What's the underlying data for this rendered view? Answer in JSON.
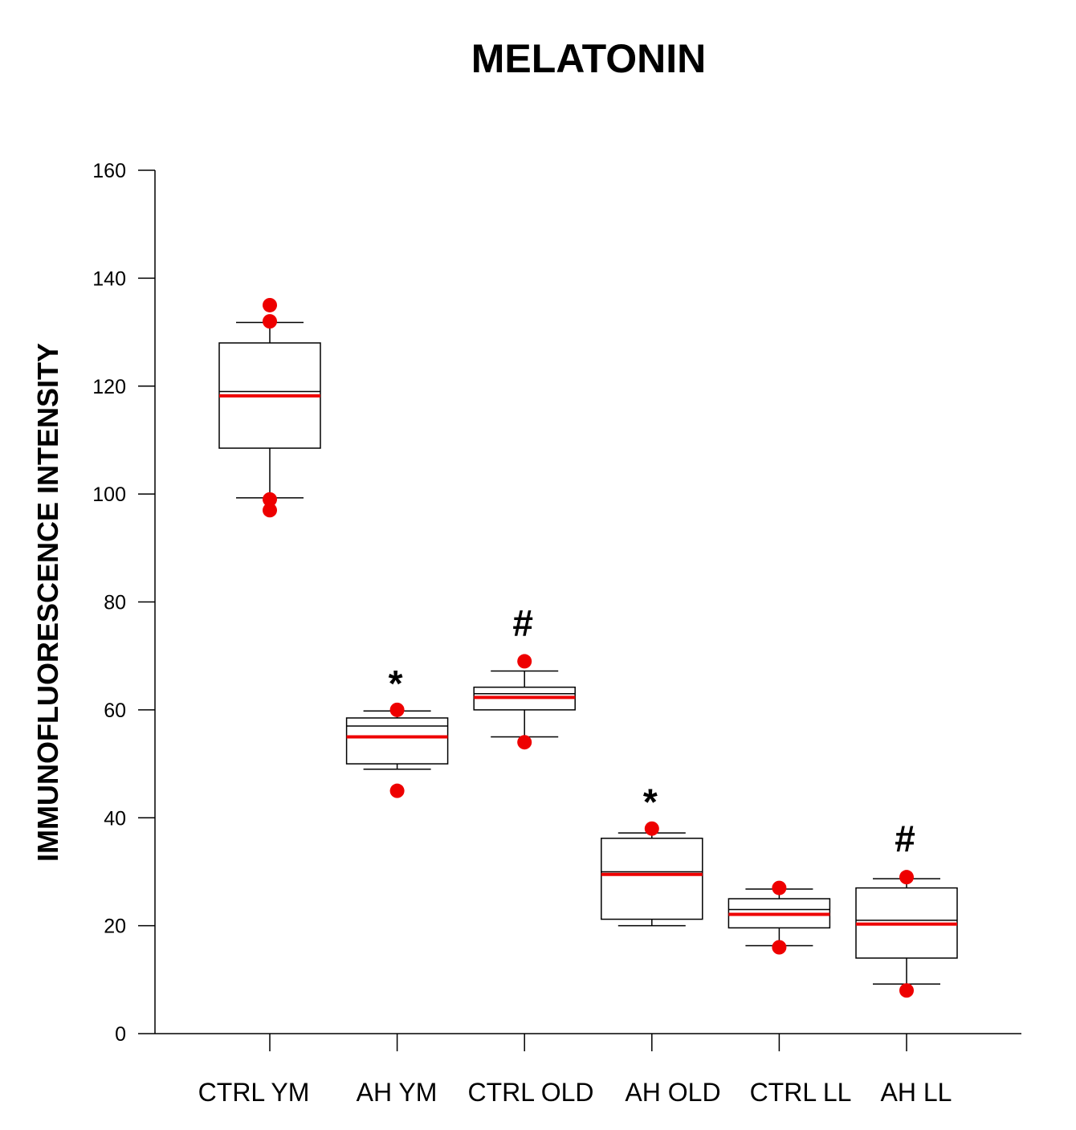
{
  "chart_data": {
    "type": "box",
    "title": "MELATONIN",
    "xlabel": "",
    "ylabel": "IMMUNOFLUORESCENCE INTENSITY",
    "ylim": [
      0,
      160
    ],
    "yticks": [
      0,
      20,
      40,
      60,
      80,
      100,
      120,
      140,
      160
    ],
    "ytick_labels": [
      "0",
      "20",
      "40",
      "60",
      "80",
      "100",
      "120",
      "140",
      "160"
    ],
    "grid": false,
    "categories": [
      "CTRL YM",
      "AH YM",
      "CTRL OLD",
      "AH OLD",
      "CTRL LL",
      "AH LL"
    ],
    "mean_color": "#ee0000",
    "outlier_color": "#ee0000",
    "line_color": "#000000",
    "boxes": [
      {
        "category": "CTRL YM",
        "whisker_low": 99.3,
        "q1": 108.5,
        "median": 119,
        "q3": 128,
        "whisker_high": 131.8,
        "mean": 118.2,
        "outliers": [
          97,
          99,
          132,
          135
        ],
        "annotation": ""
      },
      {
        "category": "AH YM",
        "whisker_low": 49,
        "q1": 50,
        "median": 57,
        "q3": 58.5,
        "whisker_high": 59.8,
        "mean": 55,
        "outliers": [
          45,
          60
        ],
        "annotation": "*"
      },
      {
        "category": "CTRL OLD",
        "whisker_low": 55,
        "q1": 60,
        "median": 63,
        "q3": 64.2,
        "whisker_high": 67.2,
        "mean": 62.3,
        "outliers": [
          54,
          69
        ],
        "annotation": "#"
      },
      {
        "category": "AH OLD",
        "whisker_low": 20,
        "q1": 21.2,
        "median": 30,
        "q3": 36.2,
        "whisker_high": 37.2,
        "mean": 29.5,
        "outliers": [
          38
        ],
        "annotation": "*"
      },
      {
        "category": "CTRL LL",
        "whisker_low": 16.3,
        "q1": 19.6,
        "median": 23,
        "q3": 25,
        "whisker_high": 26.8,
        "mean": 22.1,
        "outliers": [
          16,
          27
        ],
        "annotation": ""
      },
      {
        "category": "AH LL",
        "whisker_low": 9.2,
        "q1": 14,
        "median": 21,
        "q3": 27,
        "whisker_high": 28.7,
        "mean": 20.3,
        "outliers": [
          8,
          29
        ],
        "annotation": "#"
      }
    ]
  }
}
